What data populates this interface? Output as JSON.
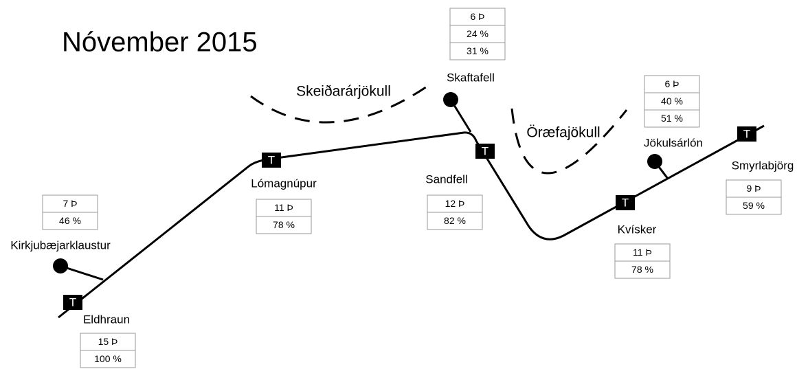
{
  "title": "Nóvember 2015",
  "glaciers": [
    "Skeiðarárjökull",
    "Öræfajökull"
  ],
  "marker_label": "T",
  "stations": [
    {
      "name": "Eldhraun",
      "stats": [
        "15 Þ",
        "100 %"
      ]
    },
    {
      "name": "Kirkjubæjarklaustur",
      "stats": [
        "7 Þ",
        "46 %"
      ]
    },
    {
      "name": "Lómagnúpur",
      "stats": [
        "11 Þ",
        "78 %"
      ]
    },
    {
      "name": "Skaftafell",
      "stats": [
        "6 Þ",
        "24 %",
        "31 %"
      ]
    },
    {
      "name": "Sandfell",
      "stats": [
        "12 Þ",
        "82 %"
      ]
    },
    {
      "name": "Jökulsárlón",
      "stats": [
        "6 Þ",
        "40 %",
        "51 %"
      ]
    },
    {
      "name": "Kvísker",
      "stats": [
        "11 Þ",
        "78 %"
      ]
    },
    {
      "name": "Smyrlabjörg",
      "stats": [
        "9 Þ",
        "59 %"
      ]
    }
  ]
}
